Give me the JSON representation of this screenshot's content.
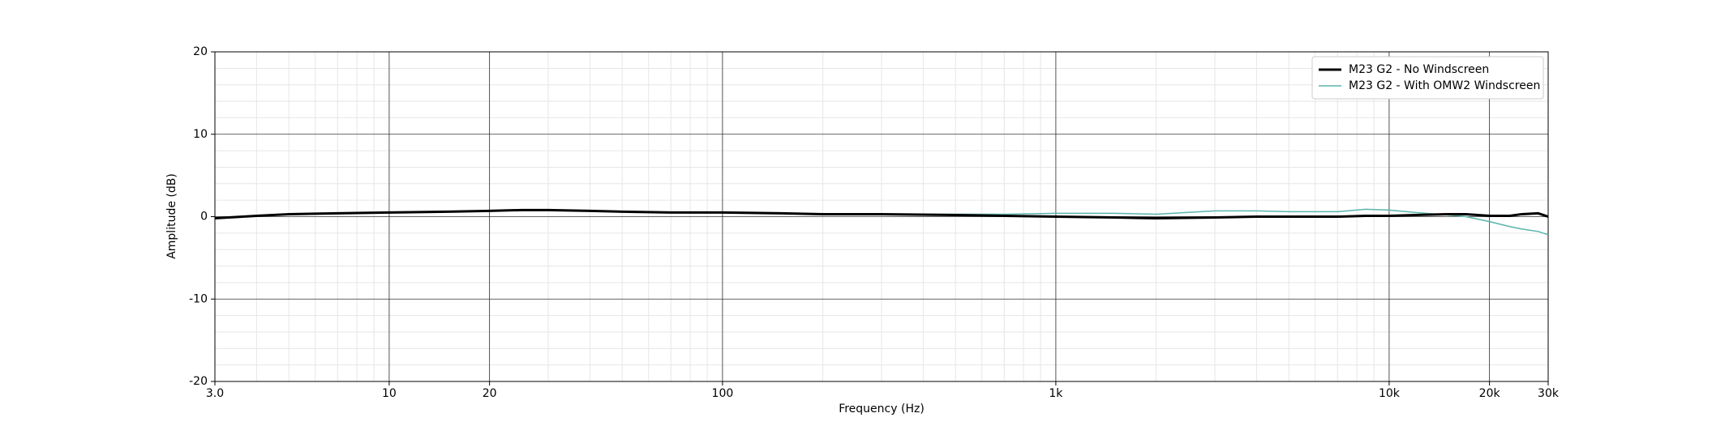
{
  "chart_data": {
    "type": "line",
    "x_label": "Frequency (Hz)",
    "y_label": "Amplitude (dB)",
    "x": [
      3,
      4,
      5,
      7,
      10,
      15,
      20,
      25,
      30,
      40,
      50,
      70,
      100,
      150,
      200,
      300,
      500,
      700,
      1000,
      1500,
      2000,
      3000,
      4000,
      5000,
      7000,
      8500,
      10000,
      12000,
      15000,
      17000,
      20000,
      23000,
      25000,
      28000,
      30000
    ],
    "series": [
      {
        "name": "M23 G2 - No Windscreen",
        "color": "#000000",
        "values": [
          -0.2,
          0.1,
          0.3,
          0.4,
          0.5,
          0.6,
          0.7,
          0.8,
          0.8,
          0.7,
          0.6,
          0.5,
          0.5,
          0.4,
          0.3,
          0.3,
          0.2,
          0.1,
          0.0,
          -0.1,
          -0.2,
          -0.1,
          0.0,
          0.0,
          0.0,
          0.1,
          0.1,
          0.2,
          0.3,
          0.3,
          0.1,
          0.1,
          0.3,
          0.4,
          0.0
        ]
      },
      {
        "name": "M23 G2 - With OMW2 Windscreen",
        "color": "#5ab4ac",
        "values": [
          -0.2,
          0.1,
          0.3,
          0.4,
          0.5,
          0.6,
          0.7,
          0.8,
          0.8,
          0.7,
          0.6,
          0.5,
          0.5,
          0.4,
          0.3,
          0.3,
          0.3,
          0.3,
          0.4,
          0.4,
          0.3,
          0.7,
          0.7,
          0.6,
          0.6,
          0.9,
          0.8,
          0.5,
          0.2,
          0.0,
          -0.6,
          -1.2,
          -1.5,
          -1.8,
          -2.2
        ]
      }
    ],
    "xscale": "log",
    "xlim": [
      3,
      30000
    ],
    "xticks": [
      {
        "value": 3,
        "label": "3.0"
      },
      10,
      20,
      100,
      {
        "value": 1000,
        "label": "1k"
      },
      {
        "value": 10000,
        "label": "10k"
      },
      {
        "value": 20000,
        "label": "20k"
      },
      {
        "value": 30000,
        "label": "30k"
      }
    ],
    "ylim": [
      -20,
      20
    ],
    "yticks": [
      -20,
      -10,
      0,
      10,
      20
    ],
    "grid": true,
    "legend": "upper right"
  }
}
